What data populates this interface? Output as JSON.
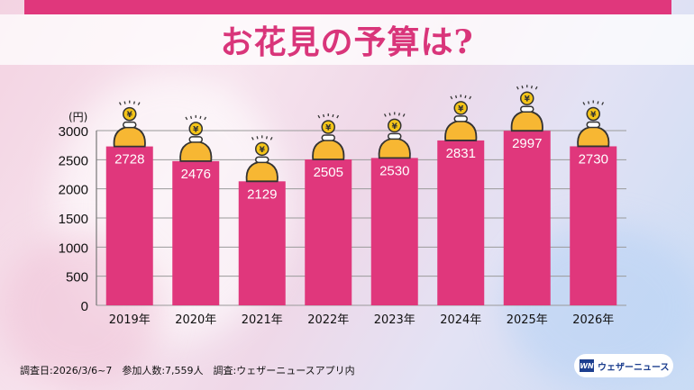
{
  "title": "お花見の予算は?",
  "footer": "調査日:2026/3/6~7　参加人数:7,559人　調査:ウェザーニュースアプリ内",
  "logo": {
    "mark": "WN",
    "text": "ウェザーニュース"
  },
  "colors": {
    "bar": "#e0377c",
    "accent": "#e0377c",
    "purse": "#f7b733",
    "title": "#d9357a"
  },
  "chart_data": {
    "type": "bar",
    "title": "お花見の予算は?",
    "ylabel": "(円)",
    "xlabel": "",
    "categories": [
      "2019年",
      "2020年",
      "2021年",
      "2022年",
      "2023年",
      "2024年",
      "2025年",
      "2026年"
    ],
    "values": [
      2728,
      2476,
      2129,
      2505,
      2530,
      2831,
      2997,
      2730
    ],
    "ylim": [
      0,
      3000
    ],
    "yticks": [
      0,
      500,
      1000,
      1500,
      2000,
      2500,
      3000
    ],
    "grid": true,
    "icon": "coin-purse-icon"
  }
}
